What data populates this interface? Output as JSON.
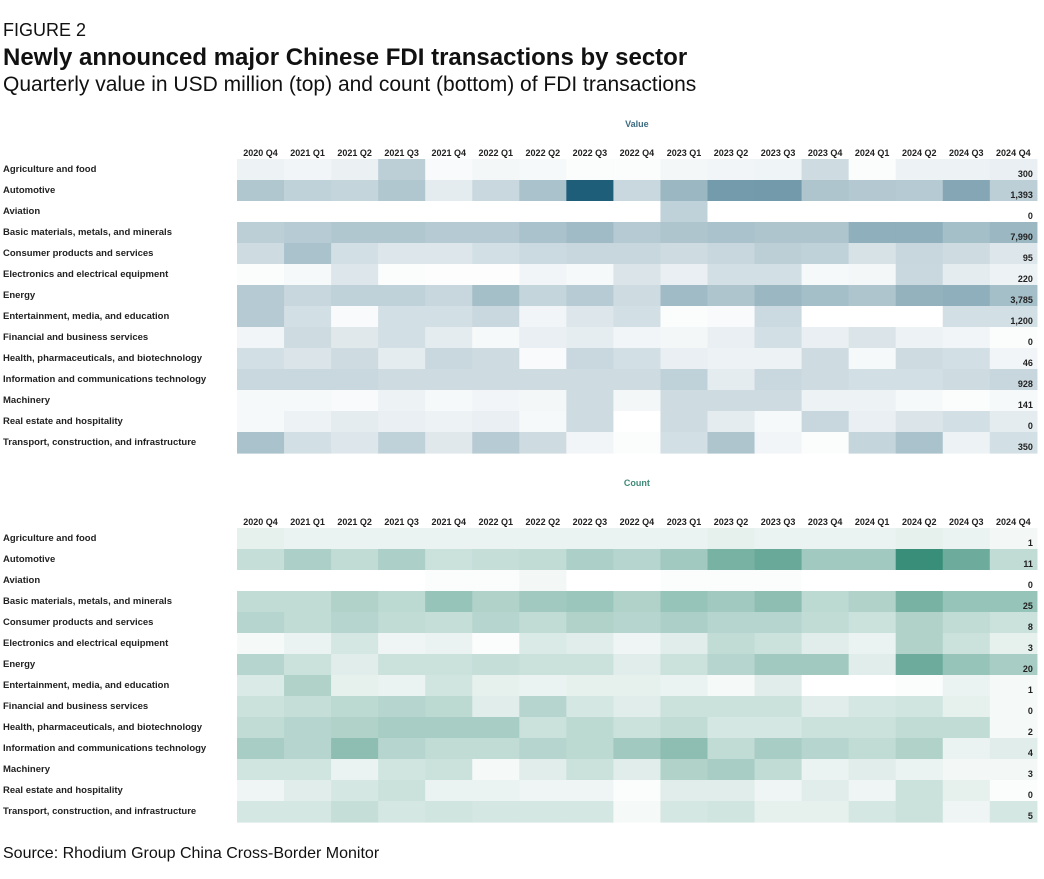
{
  "figure": {
    "label": "FIGURE 2",
    "title": "Newly announced major Chinese FDI transactions by sector",
    "subtitle": "Quarterly value in USD million (top) and count (bottom) of FDI transactions",
    "source": "Source: Rhodium Group China Cross-Border Monitor"
  },
  "colors": {
    "value_heat": "#1f5e78",
    "count_heat": "#2f8872",
    "value_title": "#3d6d82",
    "count_title": "#3f8a78"
  },
  "chart_data": [
    {
      "type": "heatmap",
      "title": "Value",
      "quarters": [
        "2020 Q4",
        "2021 Q1",
        "2021 Q2",
        "2021 Q3",
        "2021 Q4",
        "2022 Q1",
        "2022 Q2",
        "2022 Q3",
        "2022 Q4",
        "2023 Q1",
        "2023 Q2",
        "2023 Q3",
        "2023 Q4",
        "2024 Q1",
        "2024 Q2",
        "2024 Q3",
        "2024 Q4"
      ],
      "sectors": [
        {
          "name": "Agriculture and food",
          "label": "300",
          "levels": [
            0.08,
            0.06,
            0.09,
            0.3,
            0.03,
            0.05,
            0.04,
            0.02,
            0.02,
            0.05,
            0.06,
            0.07,
            0.22,
            0.02,
            0.08,
            0.08,
            0.1
          ]
        },
        {
          "name": "Automotive",
          "label": "1,393",
          "levels": [
            0.35,
            0.28,
            0.26,
            0.35,
            0.12,
            0.24,
            0.38,
            1.0,
            0.24,
            0.45,
            0.62,
            0.63,
            0.36,
            0.34,
            0.33,
            0.55,
            0.3
          ]
        },
        {
          "name": "Aviation",
          "label": "0",
          "levels": [
            0,
            0,
            0,
            0,
            0,
            0,
            0,
            0,
            0,
            0.28,
            0,
            0,
            0,
            0,
            0,
            0,
            0
          ]
        },
        {
          "name": "Basic materials, metals, and minerals",
          "label": "7,990",
          "levels": [
            0.3,
            0.32,
            0.35,
            0.35,
            0.33,
            0.33,
            0.38,
            0.42,
            0.33,
            0.36,
            0.38,
            0.36,
            0.36,
            0.5,
            0.5,
            0.4,
            0.45
          ]
        },
        {
          "name": "Consumer products and services",
          "label": "95",
          "levels": [
            0.22,
            0.38,
            0.2,
            0.15,
            0.15,
            0.2,
            0.23,
            0.25,
            0.25,
            0.22,
            0.25,
            0.3,
            0.28,
            0.18,
            0.25,
            0.22,
            0.15
          ]
        },
        {
          "name": "Electronics and electrical equipment",
          "label": "220",
          "levels": [
            0.02,
            0.04,
            0.15,
            0.02,
            0.01,
            0.01,
            0.06,
            0.04,
            0.16,
            0.1,
            0.2,
            0.2,
            0.04,
            0.05,
            0.24,
            0.12,
            0.08
          ]
        },
        {
          "name": "Energy",
          "label": "3,785",
          "levels": [
            0.33,
            0.25,
            0.28,
            0.28,
            0.25,
            0.4,
            0.26,
            0.32,
            0.22,
            0.42,
            0.36,
            0.45,
            0.4,
            0.36,
            0.48,
            0.5,
            0.4
          ]
        },
        {
          "name": "Entertainment, media, and education",
          "label": "1,200",
          "levels": [
            0.33,
            0.2,
            0.03,
            0.2,
            0.2,
            0.24,
            0.06,
            0.15,
            0.2,
            0.02,
            0.03,
            0.23,
            0,
            0,
            0,
            0.2,
            0.2
          ]
        },
        {
          "name": "Financial and business services",
          "label": "0",
          "levels": [
            0.06,
            0.22,
            0.14,
            0.2,
            0.12,
            0.04,
            0.1,
            0.11,
            0.06,
            0.05,
            0.1,
            0.2,
            0.1,
            0.16,
            0.08,
            0.06,
            0.02
          ]
        },
        {
          "name": "Health, pharmaceuticals, and biotechnology",
          "label": "46",
          "levels": [
            0.2,
            0.16,
            0.22,
            0.12,
            0.24,
            0.22,
            0.03,
            0.24,
            0.2,
            0.1,
            0.08,
            0.08,
            0.22,
            0.04,
            0.22,
            0.2,
            0.06
          ]
        },
        {
          "name": "Information and communications technology",
          "label": "928",
          "levels": [
            0.24,
            0.24,
            0.24,
            0.22,
            0.22,
            0.22,
            0.22,
            0.22,
            0.22,
            0.28,
            0.12,
            0.24,
            0.22,
            0.2,
            0.2,
            0.22,
            0.25
          ]
        },
        {
          "name": "Machinery",
          "label": "141",
          "levels": [
            0.04,
            0.04,
            0.03,
            0.08,
            0.04,
            0.06,
            0.05,
            0.22,
            0.05,
            0.22,
            0.22,
            0.22,
            0.08,
            0.08,
            0.04,
            0.02,
            0.04
          ]
        },
        {
          "name": "Real estate and hospitality",
          "label": "0",
          "levels": [
            0.04,
            0.08,
            0.12,
            0.1,
            0.08,
            0.1,
            0.04,
            0.22,
            0,
            0.22,
            0.12,
            0.04,
            0.25,
            0.1,
            0.16,
            0.2,
            0.12
          ]
        },
        {
          "name": "Transport, construction, and infrastructure",
          "label": "350",
          "levels": [
            0.38,
            0.2,
            0.15,
            0.28,
            0.14,
            0.32,
            0.22,
            0.06,
            0.02,
            0.2,
            0.36,
            0.06,
            0.02,
            0.26,
            0.38,
            0.08,
            0.2
          ]
        }
      ]
    },
    {
      "type": "heatmap",
      "title": "Count",
      "quarters": [
        "2020 Q4",
        "2021 Q1",
        "2021 Q2",
        "2021 Q3",
        "2021 Q4",
        "2022 Q1",
        "2022 Q2",
        "2022 Q3",
        "2022 Q4",
        "2023 Q1",
        "2023 Q2",
        "2023 Q3",
        "2023 Q4",
        "2024 Q1",
        "2024 Q2",
        "2024 Q3",
        "2024 Q4"
      ],
      "sectors": [
        {
          "name": "Agriculture and food",
          "label": "1",
          "levels": [
            0.12,
            0.1,
            0.1,
            0.1,
            0.1,
            0.1,
            0.1,
            0.1,
            0.1,
            0.1,
            0.12,
            0.1,
            0.1,
            0.1,
            0.12,
            0.1,
            0.06
          ]
        },
        {
          "name": "Automotive",
          "label": "11",
          "levels": [
            0.28,
            0.4,
            0.3,
            0.4,
            0.25,
            0.28,
            0.3,
            0.4,
            0.35,
            0.45,
            0.65,
            0.72,
            0.45,
            0.45,
            0.95,
            0.7,
            0.3
          ]
        },
        {
          "name": "Aviation",
          "label": "0",
          "levels": [
            0,
            0,
            0,
            0,
            0.02,
            0.02,
            0.06,
            0,
            0,
            0.02,
            0.02,
            0.02,
            0,
            0,
            0,
            0,
            0
          ]
        },
        {
          "name": "Basic materials, metals, and minerals",
          "label": "25",
          "levels": [
            0.3,
            0.3,
            0.38,
            0.32,
            0.5,
            0.38,
            0.45,
            0.48,
            0.38,
            0.5,
            0.45,
            0.55,
            0.32,
            0.38,
            0.65,
            0.5,
            0.5
          ]
        },
        {
          "name": "Consumer products and services",
          "label": "8",
          "levels": [
            0.35,
            0.3,
            0.35,
            0.3,
            0.28,
            0.35,
            0.3,
            0.38,
            0.35,
            0.4,
            0.35,
            0.35,
            0.3,
            0.25,
            0.38,
            0.3,
            0.25
          ]
        },
        {
          "name": "Electronics and electrical equipment",
          "label": "3",
          "levels": [
            0.05,
            0.1,
            0.2,
            0.08,
            0.1,
            0.02,
            0.18,
            0.15,
            0.08,
            0.15,
            0.3,
            0.25,
            0.15,
            0.1,
            0.38,
            0.25,
            0.12
          ]
        },
        {
          "name": "Energy",
          "label": "20",
          "levels": [
            0.35,
            0.25,
            0.15,
            0.25,
            0.25,
            0.28,
            0.25,
            0.25,
            0.15,
            0.25,
            0.35,
            0.45,
            0.45,
            0.15,
            0.7,
            0.5,
            0.42
          ]
        },
        {
          "name": "Entertainment, media, and education",
          "label": "1",
          "levels": [
            0.18,
            0.38,
            0.12,
            0.1,
            0.22,
            0.12,
            0.1,
            0.12,
            0.12,
            0.1,
            0.05,
            0.15,
            0,
            0,
            0.02,
            0.1,
            0.05
          ]
        },
        {
          "name": "Financial and business services",
          "label": "0",
          "levels": [
            0.25,
            0.28,
            0.32,
            0.35,
            0.32,
            0.15,
            0.35,
            0.2,
            0.15,
            0.25,
            0.25,
            0.25,
            0.15,
            0.2,
            0.22,
            0.12,
            0.05
          ]
        },
        {
          "name": "Health, pharmaceuticals, and biotechnology",
          "label": "2",
          "levels": [
            0.3,
            0.35,
            0.38,
            0.42,
            0.42,
            0.42,
            0.25,
            0.32,
            0.25,
            0.3,
            0.2,
            0.2,
            0.25,
            0.25,
            0.3,
            0.3,
            0.05
          ]
        },
        {
          "name": "Information and communications technology",
          "label": "4",
          "levels": [
            0.42,
            0.35,
            0.55,
            0.35,
            0.3,
            0.3,
            0.35,
            0.32,
            0.45,
            0.55,
            0.3,
            0.42,
            0.35,
            0.3,
            0.38,
            0.1,
            0.15
          ]
        },
        {
          "name": "Machinery",
          "label": "3",
          "levels": [
            0.22,
            0.22,
            0.1,
            0.22,
            0.25,
            0.05,
            0.15,
            0.25,
            0.15,
            0.38,
            0.42,
            0.3,
            0.1,
            0.15,
            0.1,
            0.06,
            0.06
          ]
        },
        {
          "name": "Real estate and hospitality",
          "label": "0",
          "levels": [
            0.08,
            0.15,
            0.2,
            0.25,
            0.1,
            0.1,
            0.08,
            0.08,
            0.02,
            0.15,
            0.15,
            0.08,
            0.15,
            0.08,
            0.25,
            0.12,
            0.02
          ]
        },
        {
          "name": "Transport, construction, and infrastructure",
          "label": "5",
          "levels": [
            0.2,
            0.2,
            0.28,
            0.2,
            0.22,
            0.2,
            0.2,
            0.2,
            0.05,
            0.2,
            0.22,
            0.12,
            0.12,
            0.2,
            0.25,
            0.08,
            0.2
          ]
        }
      ]
    }
  ]
}
